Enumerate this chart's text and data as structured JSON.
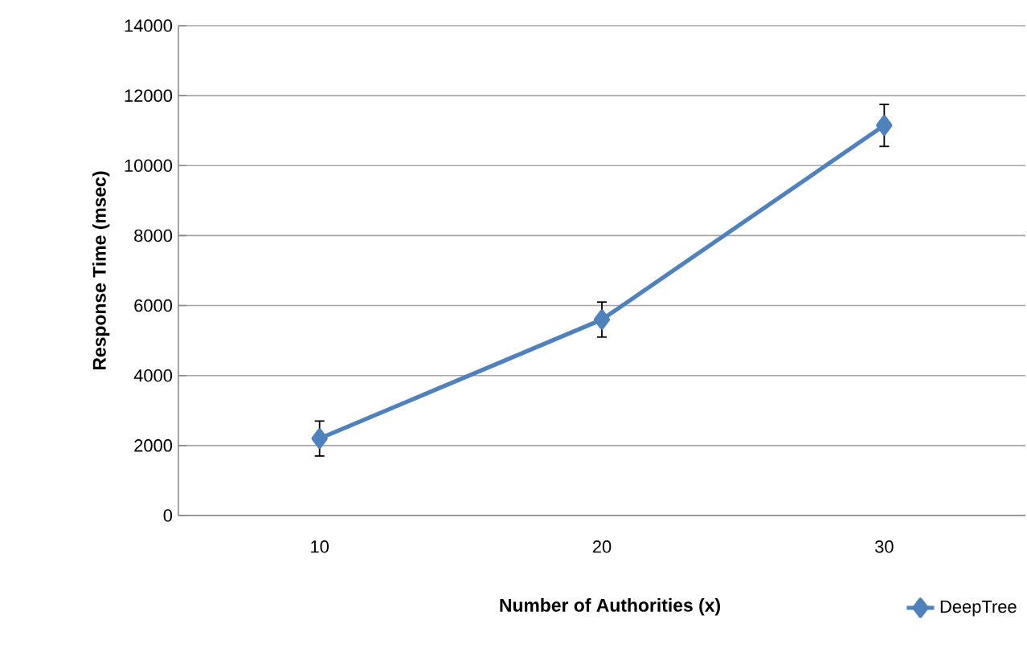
{
  "chart_data": {
    "type": "line",
    "xlabel": "Number of Authorities  (x)",
    "ylabel": "Response Time (msec)",
    "categories": [
      "10",
      "20",
      "30"
    ],
    "series": [
      {
        "name": "DeepTree",
        "color": "#4f81bd",
        "values": [
          2200,
          5600,
          11150
        ],
        "errors": [
          500,
          500,
          600
        ]
      }
    ],
    "ylim": [
      0,
      14000
    ],
    "yticks": [
      0,
      2000,
      4000,
      6000,
      8000,
      10000,
      12000,
      14000
    ],
    "grid": "y",
    "legend": "bottom right",
    "marker": "diamond",
    "line_style": "solid"
  }
}
